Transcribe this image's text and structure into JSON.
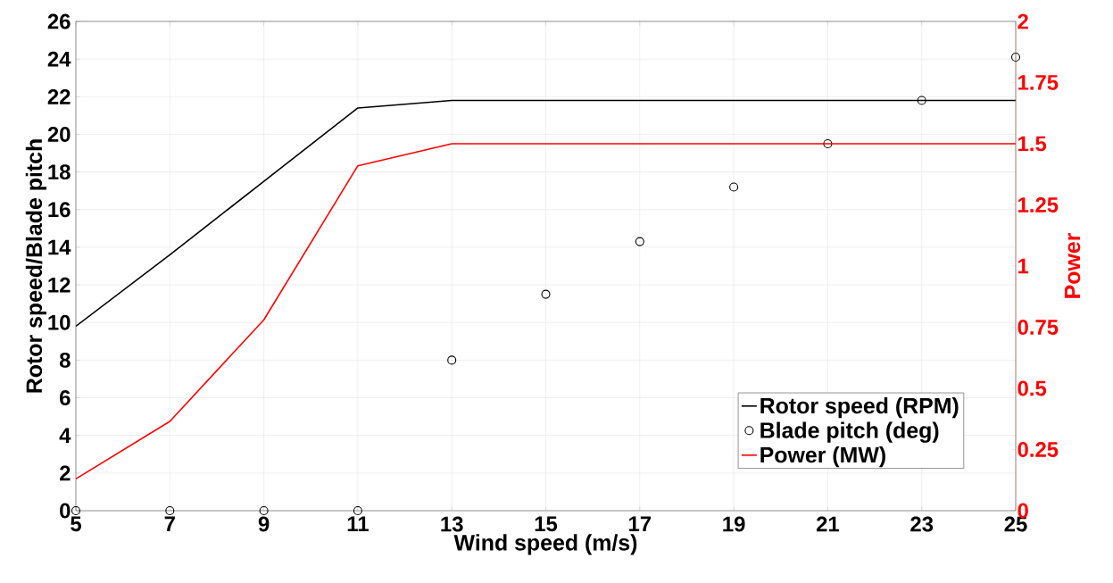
{
  "chart_data": {
    "type": "line",
    "xlabel": "Wind speed (m/s)",
    "ylabel": "Rotor speed/Blade pitch",
    "y2label": "Power",
    "x": [
      5,
      7,
      9,
      11,
      13,
      15,
      17,
      19,
      21,
      23,
      25
    ],
    "series": [
      {
        "name": "Rotor speed (RPM)",
        "color": "#000000",
        "values": [
          9.8,
          13.6,
          17.5,
          21.4,
          21.8,
          21.8,
          21.8,
          21.8,
          21.8,
          21.8,
          21.8
        ]
      },
      {
        "name": "Blade pitch (deg)",
        "type": "scatter",
        "marker": "circle",
        "color": "#000000",
        "values": [
          0,
          0,
          0,
          0,
          8,
          11.5,
          14.3,
          17.2,
          19.5,
          21.8,
          24.1
        ]
      },
      {
        "name": "Power (MW)",
        "axis": "y2",
        "color": "#ff0000",
        "values": [
          0.13,
          0.365,
          0.78,
          1.41,
          1.5,
          1.5,
          1.5,
          1.5,
          1.5,
          1.5,
          1.5
        ]
      }
    ],
    "xlim": [
      5,
      25
    ],
    "xticks": [
      5,
      7,
      9,
      11,
      13,
      15,
      17,
      19,
      21,
      23,
      25
    ],
    "ylim": [
      0,
      26
    ],
    "yticks": [
      0,
      2,
      4,
      6,
      8,
      10,
      12,
      14,
      16,
      18,
      20,
      22,
      24,
      26
    ],
    "y2lim": [
      0,
      2
    ],
    "y2ticks": [
      0,
      0.25,
      0.5,
      0.75,
      1,
      1.25,
      1.5,
      1.75,
      2
    ],
    "grid": true,
    "legend": "bottom right"
  }
}
